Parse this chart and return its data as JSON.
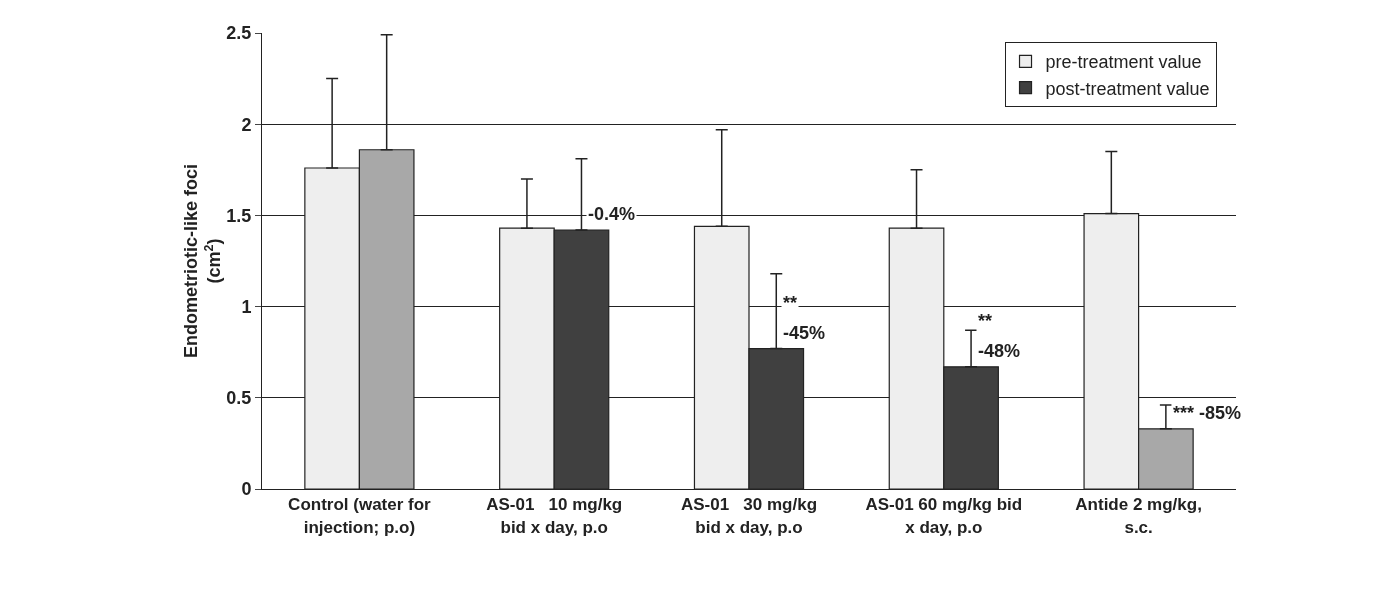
{
  "chart_data": {
    "type": "bar",
    "ylabel": "Endometriotic-like foci (cm$^{2}$)",
    "categories": [
      "Control (water for injection; p.o)",
      "AS-01   10 mg/kg bid x day, p.o",
      "AS-01   30 mg/kg bid x day, p.o",
      "AS-01 60 mg/kg bid x day, p.o",
      "Antide 2 mg/kg, s.c."
    ],
    "series": [
      {
        "name": "pre-treatment value",
        "color": "#eeeeee",
        "values": [
          1.76,
          1.43,
          1.44,
          1.43,
          1.51
        ],
        "errors": [
          [
            1.76,
            2.25
          ],
          [
            1.43,
            1.7
          ],
          [
            1.44,
            1.97
          ],
          [
            1.43,
            1.75
          ],
          [
            1.51,
            1.85
          ]
        ]
      },
      {
        "name": "post-treatment value",
        "color": "#404040",
        "colors": [
          "#a8a8a8",
          "#404040",
          "#404040",
          "#404040",
          "#a8a8a8"
        ],
        "values": [
          1.86,
          1.42,
          0.77,
          0.67,
          0.33
        ],
        "errors": [
          [
            1.86,
            2.49
          ],
          [
            1.42,
            1.81
          ],
          [
            0.77,
            1.18
          ],
          [
            0.67,
            0.87
          ],
          [
            0.33,
            0.46
          ]
        ]
      }
    ],
    "annotations": [
      {
        "text": "-0.4%",
        "x": "AS-01   10 mg/kg bid x day, p.o",
        "y": 1.42
      },
      {
        "text": "**",
        "x": "AS-01   30 mg/kg bid x day, p.o",
        "y": 0.77
      },
      {
        "text": "-45%",
        "x": "AS-01   30 mg/kg bid x day, p.o",
        "y": 0.77
      },
      {
        "text": "**",
        "x": "AS-01 60 mg/kg bid x day, p.o",
        "y": 0.67
      },
      {
        "text": "-48%",
        "x": "AS-01 60 mg/kg bid x day, p.o",
        "y": 0.67
      },
      {
        "text": "*** -85%",
        "x": "Antide 2 mg/kg, s.c.",
        "y": 0.33
      }
    ],
    "ylim": [
      0,
      2.5
    ],
    "yticks": [
      0,
      0.5,
      1,
      1.5,
      2,
      2.5
    ],
    "grid": "y",
    "legend": "top right"
  }
}
